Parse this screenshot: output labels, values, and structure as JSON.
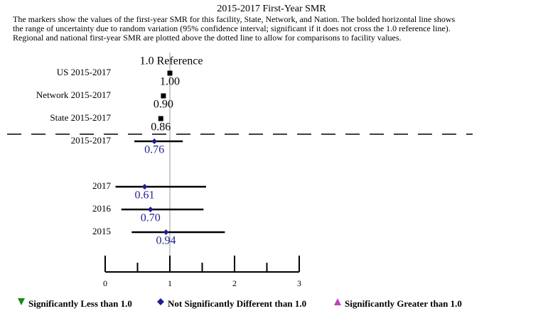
{
  "chart_data": {
    "type": "forest",
    "title": "2015-2017 First-Year SMR",
    "subtitle": [
      "The markers show the values of the first-year SMR for this facility, State, Network, and Nation. The bolded horizontal line shows",
      "the range of uncertainty due to random variation (95% confidence interval; significant if it does not cross the 1.0 reference line).",
      "Regional and national first-year SMR are plotted above the dotted line to allow for comparisons to facility values."
    ],
    "reference": 1,
    "reference_label": "1.0 Reference",
    "categories": [
      "US 2015-2017",
      "Network 2015-2017",
      "State 2015-2017",
      "2015-2017",
      "2017",
      "2016",
      "2015"
    ],
    "values": [
      1.0,
      0.9,
      0.86,
      0.76,
      0.61,
      0.7,
      0.94
    ],
    "value_labels": [
      "1.00",
      "0.90",
      "0.86",
      "0.76",
      "0.61",
      "0.70",
      "0.94"
    ],
    "ci_lower": [
      null,
      null,
      null,
      0.45,
      0.16,
      0.25,
      0.41
    ],
    "ci_upper": [
      null,
      null,
      null,
      1.2,
      1.56,
      1.52,
      1.85
    ],
    "markers": [
      "square",
      "square",
      "square",
      "diamond",
      "diamond",
      "diamond",
      "diamond"
    ],
    "marker_colors": [
      "#000000",
      "#000000",
      "#000000",
      "#1f1f8f",
      "#1f1f8f",
      "#1f1f8f",
      "#1f1f8f"
    ],
    "separator_after": 2,
    "xlim": [
      0,
      3
    ],
    "xticks": [
      0,
      1,
      2,
      3
    ],
    "minor_xticks": [
      0.5,
      1.5,
      2.5
    ],
    "legend": [
      {
        "label": "Significantly Less than 1.0",
        "color": "#1a8a1a",
        "shape": "triangle-down"
      },
      {
        "label": "Not Significantly Different than 1.0",
        "color": "#1f1f8f",
        "shape": "diamond"
      },
      {
        "label": "Significantly Greater than 1.0",
        "color": "#c040c0",
        "shape": "triangle-up"
      }
    ]
  }
}
